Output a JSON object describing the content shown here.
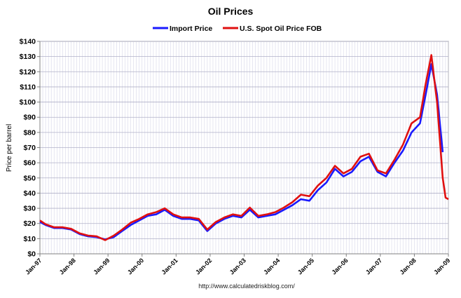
{
  "chart_data": {
    "type": "line",
    "title": "Oil Prices",
    "ylabel": "Price per barrel",
    "xlabel": "",
    "source": "http://www.calculatedriskblog.com/",
    "ylim": [
      0,
      140
    ],
    "yticks": [
      {
        "value": 0,
        "label": "$0"
      },
      {
        "value": 10,
        "label": "$10"
      },
      {
        "value": 20,
        "label": "$20"
      },
      {
        "value": 30,
        "label": "$30"
      },
      {
        "value": 40,
        "label": "$40"
      },
      {
        "value": 50,
        "label": "$50"
      },
      {
        "value": 60,
        "label": "$60"
      },
      {
        "value": 70,
        "label": "$70"
      },
      {
        "value": 80,
        "label": "$80"
      },
      {
        "value": 90,
        "label": "$90"
      },
      {
        "value": 100,
        "label": "$100"
      },
      {
        "value": 110,
        "label": "$110"
      },
      {
        "value": 120,
        "label": "$120"
      },
      {
        "value": 130,
        "label": "$130"
      },
      {
        "value": 140,
        "label": "$140"
      }
    ],
    "xlim": [
      "1997-01",
      "2009-01"
    ],
    "xticks": [
      {
        "value": "1997-01",
        "label": "Jan-97"
      },
      {
        "value": "1998-01",
        "label": "Jan-98"
      },
      {
        "value": "1999-01",
        "label": "Jan-99"
      },
      {
        "value": "2000-01",
        "label": "Jan-00"
      },
      {
        "value": "2001-01",
        "label": "Jan-01"
      },
      {
        "value": "2002-01",
        "label": "Jan-02"
      },
      {
        "value": "2003-01",
        "label": "Jan-03"
      },
      {
        "value": "2004-01",
        "label": "Jan-04"
      },
      {
        "value": "2005-01",
        "label": "Jan-05"
      },
      {
        "value": "2006-01",
        "label": "Jan-06"
      },
      {
        "value": "2007-01",
        "label": "Jan-07"
      },
      {
        "value": "2008-01",
        "label": "Jan-08"
      },
      {
        "value": "2009-01",
        "label": "Jan-09"
      }
    ],
    "grid": true,
    "legend_position": "top-center",
    "series": [
      {
        "name": "Import Price",
        "color": "#1a1aff",
        "points": [
          [
            "1997-01",
            21
          ],
          [
            "1997-03",
            19
          ],
          [
            "1997-06",
            17
          ],
          [
            "1997-09",
            17
          ],
          [
            "1997-12",
            16
          ],
          [
            "1998-03",
            13
          ],
          [
            "1998-06",
            11.5
          ],
          [
            "1998-09",
            11
          ],
          [
            "1998-12",
            9.5
          ],
          [
            "1999-03",
            11
          ],
          [
            "1999-06",
            15
          ],
          [
            "1999-09",
            19
          ],
          [
            "1999-12",
            22
          ],
          [
            "2000-03",
            25
          ],
          [
            "2000-06",
            26
          ],
          [
            "2000-09",
            29
          ],
          [
            "2000-12",
            25
          ],
          [
            "2001-03",
            23
          ],
          [
            "2001-06",
            23
          ],
          [
            "2001-09",
            22
          ],
          [
            "2001-12",
            15
          ],
          [
            "2002-03",
            20
          ],
          [
            "2002-06",
            23
          ],
          [
            "2002-09",
            25
          ],
          [
            "2002-12",
            24
          ],
          [
            "2003-03",
            29
          ],
          [
            "2003-06",
            24
          ],
          [
            "2003-09",
            25
          ],
          [
            "2003-12",
            26
          ],
          [
            "2004-03",
            29
          ],
          [
            "2004-06",
            32
          ],
          [
            "2004-09",
            36
          ],
          [
            "2004-12",
            35
          ],
          [
            "2005-03",
            42
          ],
          [
            "2005-06",
            47
          ],
          [
            "2005-09",
            56
          ],
          [
            "2005-12",
            51
          ],
          [
            "2006-03",
            54
          ],
          [
            "2006-06",
            61
          ],
          [
            "2006-09",
            64
          ],
          [
            "2006-12",
            54
          ],
          [
            "2007-03",
            51
          ],
          [
            "2007-06",
            60
          ],
          [
            "2007-09",
            68
          ],
          [
            "2007-12",
            80
          ],
          [
            "2008-03",
            86
          ],
          [
            "2008-05",
            105
          ],
          [
            "2008-07",
            125
          ],
          [
            "2008-09",
            105
          ],
          [
            "2008-11",
            67
          ]
        ]
      },
      {
        "name": "U.S. Spot Oil Price FOB",
        "color": "#e01010",
        "points": [
          [
            "1997-01",
            22
          ],
          [
            "1997-03",
            19.5
          ],
          [
            "1997-06",
            17.5
          ],
          [
            "1997-09",
            17.5
          ],
          [
            "1997-12",
            16.5
          ],
          [
            "1998-03",
            13.5
          ],
          [
            "1998-06",
            12
          ],
          [
            "1998-09",
            11.5
          ],
          [
            "1998-12",
            9
          ],
          [
            "1999-03",
            12
          ],
          [
            "1999-06",
            16
          ],
          [
            "1999-09",
            20.5
          ],
          [
            "1999-12",
            23
          ],
          [
            "2000-03",
            26
          ],
          [
            "2000-06",
            27.5
          ],
          [
            "2000-09",
            30
          ],
          [
            "2000-12",
            26
          ],
          [
            "2001-03",
            24
          ],
          [
            "2001-06",
            24
          ],
          [
            "2001-09",
            23
          ],
          [
            "2001-12",
            16
          ],
          [
            "2002-03",
            21
          ],
          [
            "2002-06",
            24
          ],
          [
            "2002-09",
            26
          ],
          [
            "2002-12",
            25
          ],
          [
            "2003-03",
            30.5
          ],
          [
            "2003-06",
            25
          ],
          [
            "2003-09",
            26
          ],
          [
            "2003-12",
            27.5
          ],
          [
            "2004-03",
            30.5
          ],
          [
            "2004-06",
            34
          ],
          [
            "2004-09",
            39
          ],
          [
            "2004-12",
            38
          ],
          [
            "2005-03",
            45
          ],
          [
            "2005-06",
            50
          ],
          [
            "2005-09",
            58
          ],
          [
            "2005-12",
            53
          ],
          [
            "2006-03",
            56
          ],
          [
            "2006-06",
            64
          ],
          [
            "2006-09",
            66
          ],
          [
            "2006-12",
            55
          ],
          [
            "2007-03",
            53
          ],
          [
            "2007-06",
            62
          ],
          [
            "2007-09",
            72
          ],
          [
            "2007-12",
            86
          ],
          [
            "2008-03",
            90
          ],
          [
            "2008-05",
            112
          ],
          [
            "2008-07",
            131
          ],
          [
            "2008-09",
            100
          ],
          [
            "2008-11",
            50
          ],
          [
            "2008-12",
            37
          ],
          [
            "2009-01",
            36
          ]
        ]
      }
    ]
  }
}
